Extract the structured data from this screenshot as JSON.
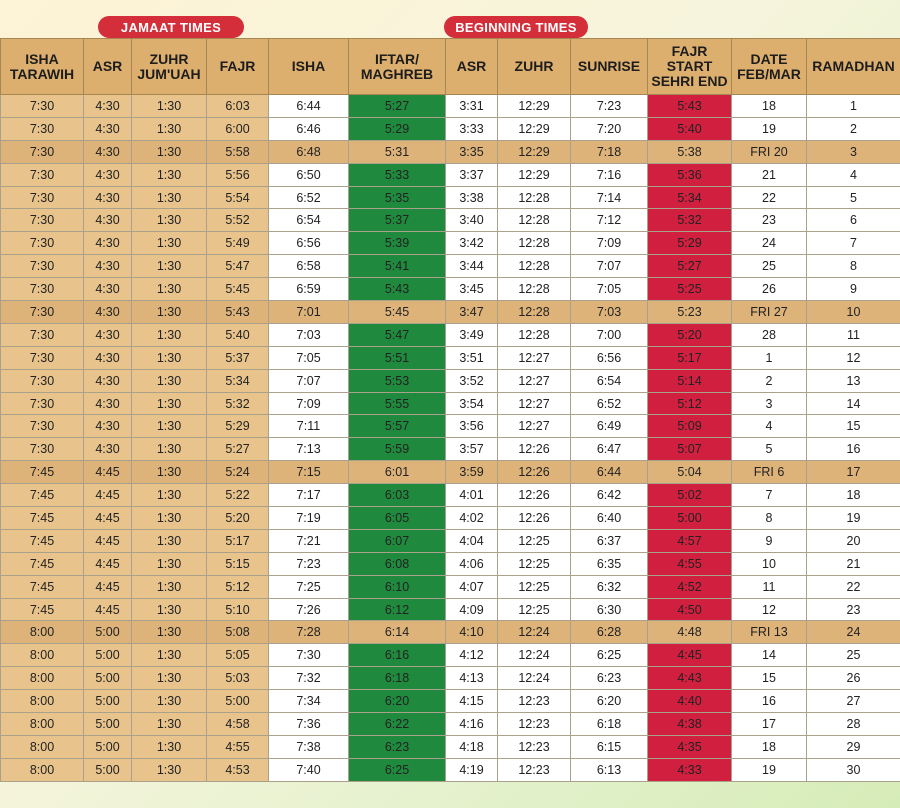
{
  "groups": {
    "jamaat": "JAMAAT TIMES",
    "beginning": "BEGINNING TIMES"
  },
  "headers": [
    "ISHA\nTARAWIH",
    "ASR",
    "ZUHR\nJUM'UAH",
    "FAJR",
    "ISHA",
    "IFTAR/\nMAGHREB",
    "ASR",
    "ZUHR",
    "SUNRISE",
    "FAJR START\nSEHRI END",
    "DATE\nFEB/MAR",
    "RAMADHAN"
  ],
  "colors": {
    "jamaat_cell": "#e8c48c",
    "header": "#ddaf6e",
    "iftar_green": "#1f8a3d",
    "fajr_red": "#d11f3f",
    "friday_row": "#ddb37a",
    "badge_red": "#d42e3a"
  },
  "rows": [
    [
      "7:30",
      "4:30",
      "1:30",
      "6:03",
      "6:44",
      "5:27",
      "3:31",
      "12:29",
      "7:23",
      "5:43",
      "18",
      "1"
    ],
    [
      "7:30",
      "4:30",
      "1:30",
      "6:00",
      "6:46",
      "5:29",
      "3:33",
      "12:29",
      "7:20",
      "5:40",
      "19",
      "2"
    ],
    [
      "7:30",
      "4:30",
      "1:30",
      "5:58",
      "6:48",
      "5:31",
      "3:35",
      "12:29",
      "7:18",
      "5:38",
      "FRI 20",
      "3"
    ],
    [
      "7:30",
      "4:30",
      "1:30",
      "5:56",
      "6:50",
      "5:33",
      "3:37",
      "12:29",
      "7:16",
      "5:36",
      "21",
      "4"
    ],
    [
      "7:30",
      "4:30",
      "1:30",
      "5:54",
      "6:52",
      "5:35",
      "3:38",
      "12:28",
      "7:14",
      "5:34",
      "22",
      "5"
    ],
    [
      "7:30",
      "4:30",
      "1:30",
      "5:52",
      "6:54",
      "5:37",
      "3:40",
      "12:28",
      "7:12",
      "5:32",
      "23",
      "6"
    ],
    [
      "7:30",
      "4:30",
      "1:30",
      "5:49",
      "6:56",
      "5:39",
      "3:42",
      "12:28",
      "7:09",
      "5:29",
      "24",
      "7"
    ],
    [
      "7:30",
      "4:30",
      "1:30",
      "5:47",
      "6:58",
      "5:41",
      "3:44",
      "12:28",
      "7:07",
      "5:27",
      "25",
      "8"
    ],
    [
      "7:30",
      "4:30",
      "1:30",
      "5:45",
      "6:59",
      "5:43",
      "3:45",
      "12:28",
      "7:05",
      "5:25",
      "26",
      "9"
    ],
    [
      "7:30",
      "4:30",
      "1:30",
      "5:43",
      "7:01",
      "5:45",
      "3:47",
      "12:28",
      "7:03",
      "5:23",
      "FRI 27",
      "10"
    ],
    [
      "7:30",
      "4:30",
      "1:30",
      "5:40",
      "7:03",
      "5:47",
      "3:49",
      "12:28",
      "7:00",
      "5:20",
      "28",
      "11"
    ],
    [
      "7:30",
      "4:30",
      "1:30",
      "5:37",
      "7:05",
      "5:51",
      "3:51",
      "12:27",
      "6:56",
      "5:17",
      "1",
      "12"
    ],
    [
      "7:30",
      "4:30",
      "1:30",
      "5:34",
      "7:07",
      "5:53",
      "3:52",
      "12:27",
      "6:54",
      "5:14",
      "2",
      "13"
    ],
    [
      "7:30",
      "4:30",
      "1:30",
      "5:32",
      "7:09",
      "5:55",
      "3:54",
      "12:27",
      "6:52",
      "5:12",
      "3",
      "14"
    ],
    [
      "7:30",
      "4:30",
      "1:30",
      "5:29",
      "7:11",
      "5:57",
      "3:56",
      "12:27",
      "6:49",
      "5:09",
      "4",
      "15"
    ],
    [
      "7:30",
      "4:30",
      "1:30",
      "5:27",
      "7:13",
      "5:59",
      "3:57",
      "12:26",
      "6:47",
      "5:07",
      "5",
      "16"
    ],
    [
      "7:45",
      "4:45",
      "1:30",
      "5:24",
      "7:15",
      "6:01",
      "3:59",
      "12:26",
      "6:44",
      "5:04",
      "FRI 6",
      "17"
    ],
    [
      "7:45",
      "4:45",
      "1:30",
      "5:22",
      "7:17",
      "6:03",
      "4:01",
      "12:26",
      "6:42",
      "5:02",
      "7",
      "18"
    ],
    [
      "7:45",
      "4:45",
      "1:30",
      "5:20",
      "7:19",
      "6:05",
      "4:02",
      "12:26",
      "6:40",
      "5:00",
      "8",
      "19"
    ],
    [
      "7:45",
      "4:45",
      "1:30",
      "5:17",
      "7:21",
      "6:07",
      "4:04",
      "12:25",
      "6:37",
      "4:57",
      "9",
      "20"
    ],
    [
      "7:45",
      "4:45",
      "1:30",
      "5:15",
      "7:23",
      "6:08",
      "4:06",
      "12:25",
      "6:35",
      "4:55",
      "10",
      "21"
    ],
    [
      "7:45",
      "4:45",
      "1:30",
      "5:12",
      "7:25",
      "6:10",
      "4:07",
      "12:25",
      "6:32",
      "4:52",
      "11",
      "22"
    ],
    [
      "7:45",
      "4:45",
      "1:30",
      "5:10",
      "7:26",
      "6:12",
      "4:09",
      "12:25",
      "6:30",
      "4:50",
      "12",
      "23"
    ],
    [
      "8:00",
      "5:00",
      "1:30",
      "5:08",
      "7:28",
      "6:14",
      "4:10",
      "12:24",
      "6:28",
      "4:48",
      "FRI 13",
      "24"
    ],
    [
      "8:00",
      "5:00",
      "1:30",
      "5:05",
      "7:30",
      "6:16",
      "4:12",
      "12:24",
      "6:25",
      "4:45",
      "14",
      "25"
    ],
    [
      "8:00",
      "5:00",
      "1:30",
      "5:03",
      "7:32",
      "6:18",
      "4:13",
      "12:24",
      "6:23",
      "4:43",
      "15",
      "26"
    ],
    [
      "8:00",
      "5:00",
      "1:30",
      "5:00",
      "7:34",
      "6:20",
      "4:15",
      "12:23",
      "6:20",
      "4:40",
      "16",
      "27"
    ],
    [
      "8:00",
      "5:00",
      "1:30",
      "4:58",
      "7:36",
      "6:22",
      "4:16",
      "12:23",
      "6:18",
      "4:38",
      "17",
      "28"
    ],
    [
      "8:00",
      "5:00",
      "1:30",
      "4:55",
      "7:38",
      "6:23",
      "4:18",
      "12:23",
      "6:15",
      "4:35",
      "18",
      "29"
    ],
    [
      "8:00",
      "5:00",
      "1:30",
      "4:53",
      "7:40",
      "6:25",
      "4:19",
      "12:23",
      "6:13",
      "4:33",
      "19",
      "30"
    ]
  ]
}
